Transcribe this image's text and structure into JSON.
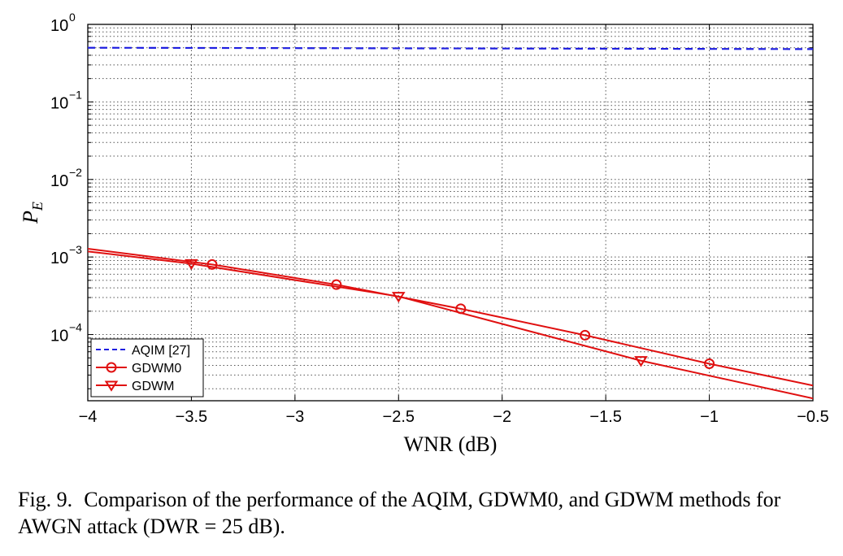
{
  "chart_data": {
    "type": "line",
    "title": "",
    "xlabel": "WNR (dB)",
    "ylabel": "P",
    "ylabel_subscript": "E",
    "xlim": [
      -4,
      -0.5
    ],
    "ylim": [
      1.4e-05,
      1
    ],
    "yscale": "log",
    "grid": true,
    "legend_position": "bottom-left",
    "x_ticks": [
      -4,
      -3.5,
      -3,
      -2.5,
      -2,
      -1.5,
      -1,
      -0.5
    ],
    "x_tick_labels": [
      "−4",
      "−3.5",
      "−3",
      "−2.5",
      "−2",
      "−1.5",
      "−1",
      "−0.5"
    ],
    "y_ticks": [
      {
        "value": 1,
        "base": "10",
        "exp": "0"
      },
      {
        "value": 0.1,
        "base": "10",
        "exp": "−1"
      },
      {
        "value": 0.01,
        "base": "10",
        "exp": "−2"
      },
      {
        "value": 0.001,
        "base": "10",
        "exp": "−3"
      },
      {
        "value": 0.0001,
        "base": "10",
        "exp": "−4"
      }
    ],
    "series": [
      {
        "name": "AQIM [27]",
        "color": "#1f1fe0",
        "style": "dashed",
        "marker": "none",
        "x": [
          -4,
          -0.5
        ],
        "y": [
          0.5,
          0.48
        ]
      },
      {
        "name": "GDWM0",
        "color": "#e01010",
        "style": "solid",
        "marker": "circle",
        "x": [
          -4,
          -3.4,
          -2.8,
          -2.2,
          -1.6,
          -1.0,
          -0.5
        ],
        "y": [
          0.00128,
          0.0008,
          0.00044,
          0.000215,
          9.8e-05,
          4.2e-05,
          2.2e-05
        ],
        "marker_x": [
          -3.4,
          -2.8,
          -2.2,
          -1.6,
          -1.0
        ],
        "marker_y": [
          0.0008,
          0.00044,
          0.000215,
          9.8e-05,
          4.2e-05
        ]
      },
      {
        "name": "GDWM",
        "color": "#e01010",
        "style": "solid",
        "marker": "triangle-down",
        "x": [
          -4,
          -3.5,
          -2.5,
          -1.33,
          -0.5
        ],
        "y": [
          0.00118,
          0.00082,
          0.00031,
          4.6e-05,
          1.5e-05
        ],
        "marker_x": [
          -3.5,
          -2.5,
          -1.33
        ],
        "marker_y": [
          0.00082,
          0.00031,
          4.6e-05
        ]
      }
    ]
  },
  "caption": {
    "label": "Fig. 9.",
    "text": "Comparison of the performance of the AQIM, GDWM0, and GDWM methods for AWGN attack (DWR = 25 dB)."
  }
}
